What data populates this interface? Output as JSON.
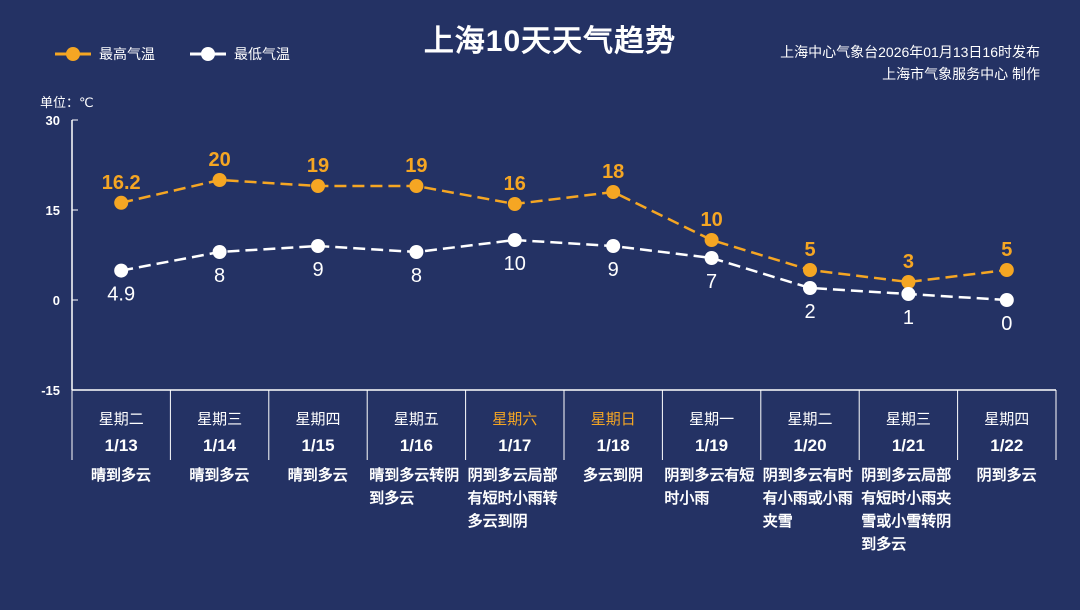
{
  "title": "上海10天天气趋势",
  "publisher": {
    "line1": "上海中心气象台2026年01月13日16时发布",
    "line2": "上海市气象服务中心 制作"
  },
  "unit": "单位：℃",
  "colors": {
    "high": "#f5a623",
    "low": "#ffffff",
    "weekend": "#f5a623",
    "bg": "#243264"
  },
  "chart_data": {
    "type": "line",
    "ylim": [
      -15,
      30
    ],
    "yticks": [
      30,
      15,
      0,
      -15
    ],
    "legend": [
      "最高气温",
      "最低气温"
    ],
    "legend_position": "top-left",
    "categories": [
      "1/13",
      "1/14",
      "1/15",
      "1/16",
      "1/17",
      "1/18",
      "1/19",
      "1/20",
      "1/21",
      "1/22"
    ],
    "weekdays": [
      "星期二",
      "星期三",
      "星期四",
      "星期五",
      "星期六",
      "星期日",
      "星期一",
      "星期二",
      "星期三",
      "星期四"
    ],
    "weekend": [
      false,
      false,
      false,
      false,
      true,
      true,
      false,
      false,
      false,
      false
    ],
    "series": [
      {
        "name": "最高气温",
        "values": [
          16.2,
          20,
          19,
          19,
          16,
          18,
          10,
          5,
          3,
          5
        ]
      },
      {
        "name": "最低气温",
        "values": [
          4.9,
          8,
          9,
          8,
          10,
          9,
          7,
          2,
          1,
          0
        ]
      }
    ]
  },
  "weather": [
    "晴到多云",
    "晴到多云",
    "晴到多云",
    "晴到多云转阴到多云",
    "阴到多云局部有短时小雨转多云到阴",
    "多云到阴",
    "阴到多云有短时小雨",
    "阴到多云有时有小雨或小雨夹雪",
    "阴到多云局部有短时小雨夹雪或小雪转阴到多云",
    "阴到多云"
  ]
}
